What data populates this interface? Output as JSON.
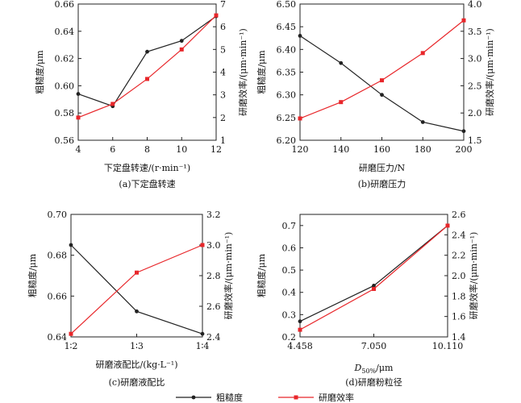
{
  "chart_data": [
    {
      "type": "line",
      "caption": "(a)下定盘转速",
      "xlabel": "下定盘转速/(r·min⁻¹)",
      "x_tick_labels": [
        "4",
        "6",
        "8",
        "10",
        "12"
      ],
      "xlim": [
        4,
        12
      ],
      "x": [
        4,
        6,
        8,
        10,
        12
      ],
      "ylabel_left": "粗糙度/μm",
      "ylim_left": [
        0.56,
        0.66
      ],
      "y_tick_labels_left": [
        "0.56",
        "0.58",
        "0.60",
        "0.62",
        "0.64",
        "0.66"
      ],
      "ylabel_right": "研磨效率/(μm·min⁻¹)",
      "ylim_right": [
        1,
        7
      ],
      "y_tick_labels_right": [
        "1",
        "2",
        "3",
        "4",
        "5",
        "6",
        "7"
      ],
      "series": [
        {
          "name": "粗糙度",
          "axis": "left",
          "color": "#222222",
          "values": [
            0.594,
            0.585,
            0.625,
            0.633,
            0.651
          ]
        },
        {
          "name": "研磨效率",
          "axis": "right",
          "color": "#e8262a",
          "values": [
            2.0,
            2.6,
            3.7,
            5.0,
            6.5
          ]
        }
      ]
    },
    {
      "type": "line",
      "caption": "(b)研磨压力",
      "xlabel": "研磨压力/N",
      "x_tick_labels": [
        "120",
        "140",
        "160",
        "180",
        "200"
      ],
      "xlim": [
        120,
        200
      ],
      "x": [
        120,
        140,
        160,
        180,
        200
      ],
      "ylabel_left": "粗糙度/μm",
      "ylim_left": [
        6.2,
        6.5
      ],
      "y_tick_labels_left": [
        "6.20",
        "6.25",
        "6.30",
        "6.35",
        "6.40",
        "6.45",
        "6.50"
      ],
      "ylabel_right": "研磨效率/(μm·min⁻¹)",
      "ylim_right": [
        1.5,
        4.0
      ],
      "y_tick_labels_right": [
        "1.5",
        "2.0",
        "2.5",
        "3.0",
        "3.5",
        "4.0"
      ],
      "series": [
        {
          "name": "粗糙度",
          "axis": "left",
          "color": "#222222",
          "values": [
            6.43,
            6.37,
            6.3,
            6.24,
            6.22
          ]
        },
        {
          "name": "研磨效率",
          "axis": "right",
          "color": "#e8262a",
          "values": [
            1.9,
            2.2,
            2.6,
            3.1,
            3.7
          ]
        }
      ]
    },
    {
      "type": "line",
      "caption": "(c)研磨液配比",
      "xlabel": "研磨液配比/(kg·L⁻¹)",
      "x_tick_labels": [
        "1∶2",
        "1∶3",
        "1∶4"
      ],
      "xlim": [
        0,
        2
      ],
      "x": [
        "1∶2",
        "1∶3",
        "1∶4"
      ],
      "ylabel_left": "粗糙度/μm",
      "ylim_left": [
        0.64,
        0.7
      ],
      "y_tick_labels_left": [
        "0.64",
        "0.66",
        "0.68",
        "0.70"
      ],
      "ylabel_right": "研磨效率/(μm·min⁻¹)",
      "ylim_right": [
        2.4,
        3.2
      ],
      "y_tick_labels_right": [
        "2.4",
        "2.6",
        "2.8",
        "3.0",
        "3.2"
      ],
      "series": [
        {
          "name": "粗糙度",
          "axis": "left",
          "color": "#222222",
          "values": [
            0.685,
            0.6525,
            0.6415
          ]
        },
        {
          "name": "研磨效率",
          "axis": "right",
          "color": "#e8262a",
          "values": [
            2.42,
            2.82,
            3.0
          ]
        }
      ]
    },
    {
      "type": "line",
      "caption": "(d)研磨粉粒径",
      "xlabel_main": "D",
      "xlabel_sub": "50%",
      "xlabel_unit": "/μm",
      "x_tick_labels": [
        "4.458",
        "7.050",
        "10.110"
      ],
      "xlim": [
        0,
        2
      ],
      "x": [
        "4.458",
        "7.050",
        "10.110"
      ],
      "ylabel_left": "粗糙度/μm",
      "ylim_left": [
        0.2,
        0.75
      ],
      "y_tick_labels_left": [
        "0.2",
        "0.3",
        "0.4",
        "0.5",
        "0.6",
        "0.7"
      ],
      "left_tick_values": [
        0.2,
        0.3,
        0.4,
        0.5,
        0.6,
        0.7
      ],
      "ylabel_right": "研磨效率/(μm·min⁻¹)",
      "ylim_right": [
        1.4,
        2.6
      ],
      "y_tick_labels_right": [
        "1.4",
        "1.6",
        "1.8",
        "2.0",
        "2.2",
        "2.4",
        "2.6"
      ],
      "series": [
        {
          "name": "粗糙度",
          "axis": "left",
          "color": "#222222",
          "values": [
            0.27,
            0.43,
            0.7
          ]
        },
        {
          "name": "研磨效率",
          "axis": "right",
          "color": "#e8262a",
          "values": [
            1.47,
            1.87,
            2.49
          ]
        }
      ]
    }
  ],
  "legend": {
    "placement": "bottom-center",
    "items": [
      {
        "label": "粗糙度",
        "color": "#222222"
      },
      {
        "label": "研磨效率",
        "color": "#e8262a"
      }
    ]
  }
}
